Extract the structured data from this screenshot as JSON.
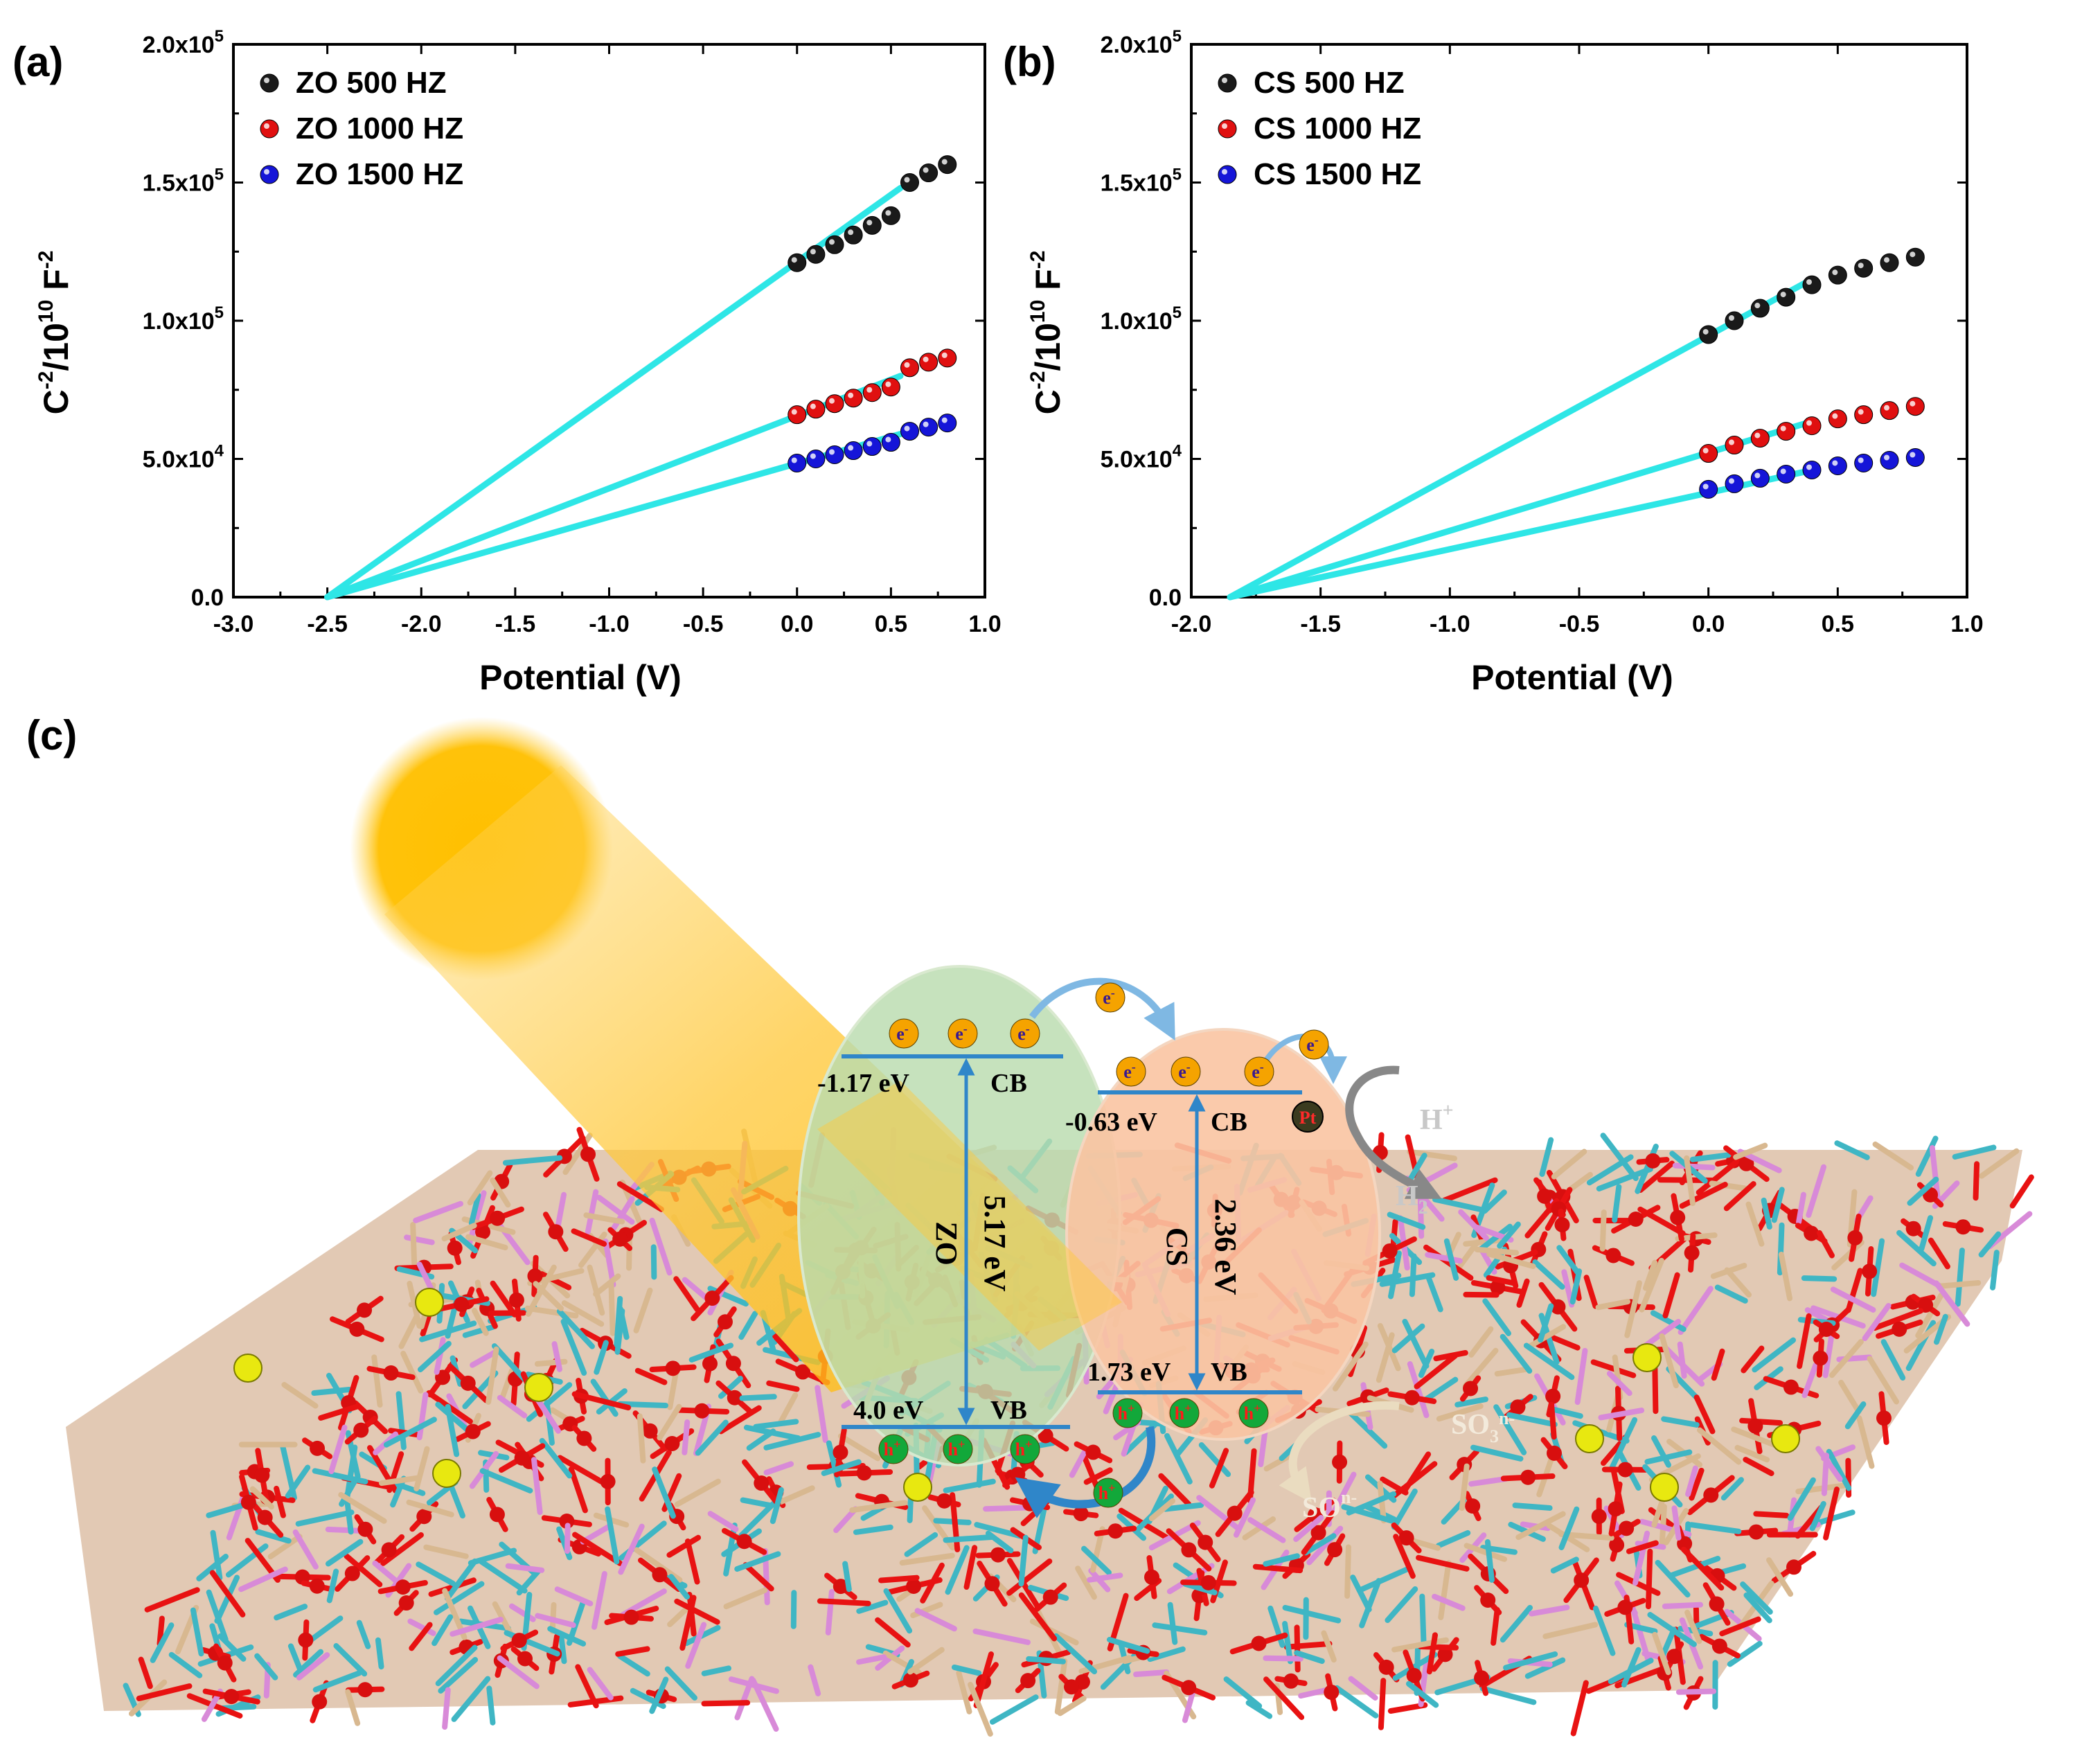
{
  "panels": {
    "a": "(a)",
    "b": "(b)",
    "c": "(c)"
  },
  "chart_data": [
    {
      "type": "scatter",
      "panel": "(a)",
      "xlabel": "Potential (V)",
      "ylabel": "C^-2/10^10 F^-2",
      "xlim": [
        -3.0,
        1.0
      ],
      "ylim": [
        0,
        200000
      ],
      "x_ticks": [
        -3.0,
        -2.5,
        -2.0,
        -1.5,
        -1.0,
        -0.5,
        0.0,
        0.5,
        1.0
      ],
      "x_tick_labels": [
        "-3.0",
        "-2.5",
        "-2.0",
        "-1.5",
        "-1.0",
        "-0.5",
        "0.0",
        "0.5",
        "1.0"
      ],
      "y_ticks": [
        0,
        50000,
        100000,
        150000,
        200000
      ],
      "y_tick_labels": [
        {
          "base": "0.0",
          "exp": ""
        },
        {
          "base": "5.0x10",
          "exp": "4"
        },
        {
          "base": "1.0x10",
          "exp": "5"
        },
        {
          "base": "1.5x10",
          "exp": "5"
        },
        {
          "base": "2.0x10",
          "exp": "5"
        }
      ],
      "legend_position": "top-left",
      "fit_intercept_x": -2.5,
      "series": [
        {
          "name": "ZO 500 HZ",
          "color": "#1a1a1a",
          "x": [
            0.0,
            0.1,
            0.2,
            0.3,
            0.4,
            0.5,
            0.6,
            0.7,
            0.8
          ],
          "y": [
            121000,
            124000,
            127500,
            131000,
            134500,
            138000,
            150000,
            153500,
            156500
          ],
          "fit_end": [
            0.55,
            148000
          ]
        },
        {
          "name": "ZO 1000 HZ",
          "color": "#e01010",
          "x": [
            0.0,
            0.1,
            0.2,
            0.3,
            0.4,
            0.5,
            0.6,
            0.7,
            0.8
          ],
          "y": [
            66000,
            68000,
            70000,
            72000,
            74000,
            76000,
            83000,
            85000,
            86500
          ],
          "fit_end": [
            0.55,
            80000
          ]
        },
        {
          "name": "ZO 1500 HZ",
          "color": "#1515d8",
          "x": [
            0.0,
            0.1,
            0.2,
            0.3,
            0.4,
            0.5,
            0.6,
            0.7,
            0.8
          ],
          "y": [
            48500,
            50000,
            51500,
            53000,
            54500,
            56000,
            60000,
            61500,
            63000
          ],
          "fit_end": [
            0.55,
            59000
          ]
        }
      ]
    },
    {
      "type": "scatter",
      "panel": "(b)",
      "xlabel": "Potential (V)",
      "ylabel": "C^-2/10^10 F^-2",
      "xlim": [
        -2.0,
        1.0
      ],
      "ylim": [
        0,
        200000
      ],
      "x_ticks": [
        -2.0,
        -1.5,
        -1.0,
        -0.5,
        0.0,
        0.5,
        1.0
      ],
      "x_tick_labels": [
        "-2.0",
        "-1.5",
        "-1.0",
        "-0.5",
        "0.0",
        "0.5",
        "1.0"
      ],
      "y_ticks": [
        0,
        50000,
        100000,
        150000,
        200000
      ],
      "y_tick_labels": [
        {
          "base": "0.0",
          "exp": ""
        },
        {
          "base": "5.0x10",
          "exp": "4"
        },
        {
          "base": "1.0x10",
          "exp": "5"
        },
        {
          "base": "1.5x10",
          "exp": "5"
        },
        {
          "base": "2.0x10",
          "exp": "5"
        }
      ],
      "legend_position": "top-left",
      "fit_intercept_x": -1.85,
      "series": [
        {
          "name": "CS 500 HZ",
          "color": "#1a1a1a",
          "x": [
            0.0,
            0.1,
            0.2,
            0.3,
            0.4,
            0.5,
            0.6,
            0.7,
            0.8
          ],
          "y": [
            95000,
            100000,
            104500,
            108500,
            113000,
            116500,
            119000,
            121000,
            123000
          ],
          "fit_end": [
            0.38,
            114000
          ]
        },
        {
          "name": "CS 1000 HZ",
          "color": "#e01010",
          "x": [
            0.0,
            0.1,
            0.2,
            0.3,
            0.4,
            0.5,
            0.6,
            0.7,
            0.8
          ],
          "y": [
            52000,
            55000,
            57500,
            60000,
            62000,
            64500,
            66000,
            67500,
            69000
          ],
          "fit_end": [
            0.38,
            63000
          ]
        },
        {
          "name": "CS 1500 HZ",
          "color": "#1515d8",
          "x": [
            0.0,
            0.1,
            0.2,
            0.3,
            0.4,
            0.5,
            0.6,
            0.7,
            0.8
          ],
          "y": [
            39000,
            41000,
            43000,
            44500,
            46000,
            47500,
            48500,
            49500,
            50500
          ],
          "fit_end": [
            0.38,
            45500
          ]
        }
      ]
    }
  ],
  "diagram": {
    "zo": {
      "name": "ZO",
      "gap": "5.17 eV",
      "cb_label": "CB",
      "vb_label": "VB",
      "cb_energy": "-1.17 eV",
      "vb_energy": "4.0 eV"
    },
    "cs": {
      "name": "CS",
      "gap": "2.36 eV",
      "cb_label": "CB",
      "vb_label": "VB",
      "cb_energy": "-0.63 eV",
      "vb_energy": "1.73 eV"
    },
    "electron": "e",
    "hole": "h",
    "charge_minus": "-",
    "charge_plus": "+",
    "pt_label": "Pt",
    "h_plus_base": "H",
    "h2_base": "H",
    "h2_sub": "2",
    "so_left_base": "SO",
    "so_left_sup": "n-",
    "so_right_base": "SO",
    "so_right_sup": "n-",
    "so_right_sub": "3",
    "colors": {
      "zo_fill": "#b9dcae",
      "cs_fill": "#f9c4a2",
      "band": "#2f86c9",
      "sun": "#ffc000",
      "electron": "#f5a300",
      "hole": "#12a83a"
    }
  }
}
